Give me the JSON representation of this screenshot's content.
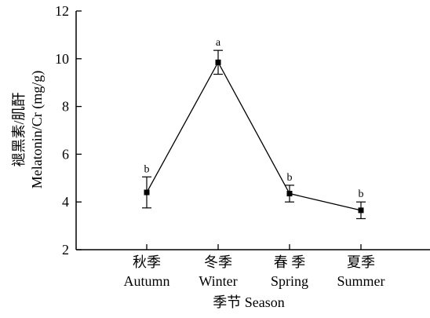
{
  "chart_data": {
    "type": "line",
    "categories": [
      {
        "zh": "秋季",
        "en": "Autumn"
      },
      {
        "zh": "冬季",
        "en": "Winter"
      },
      {
        "zh": "春 季",
        "en": "Spring"
      },
      {
        "zh": "夏季",
        "en": "Summer"
      }
    ],
    "values": [
      4.4,
      9.85,
      4.35,
      3.65
    ],
    "error": [
      0.65,
      0.5,
      0.35,
      0.35
    ],
    "significance": [
      "b",
      "a",
      "b",
      "b"
    ],
    "ylim": [
      2,
      12
    ],
    "yticks": [
      2,
      4,
      6,
      8,
      10,
      12
    ],
    "xlabel": "季节 Season",
    "ylabel_line1": "褪黑素/肌酐",
    "ylabel_line2": "Melatonin/Cr (mg/g)",
    "grid": false,
    "colors": {
      "line": "#000000",
      "marker": "#000000"
    }
  }
}
